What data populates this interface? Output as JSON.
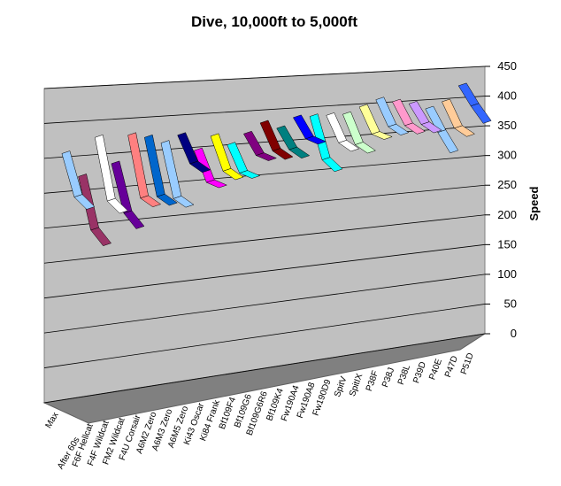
{
  "chart_data": {
    "type": "line3d",
    "title": "Dive, 10,000ft to 5,000ft",
    "y_label": "Speed",
    "categories": [
      "Max",
      null,
      "After 60s"
    ],
    "ylim": [
      0,
      450
    ],
    "yticks": [
      0,
      50,
      100,
      150,
      200,
      250,
      300,
      350,
      400,
      450
    ],
    "grid": true,
    "series": [
      {
        "name": "F6F Hellcat",
        "color": "#99ccff",
        "values": [
          355,
          300,
          290
        ]
      },
      {
        "name": "F4F Wildcat",
        "color": "#993366",
        "values": [
          320,
          250,
          235
        ]
      },
      {
        "name": "FM2 Wildcat",
        "color": "#ffffff",
        "values": [
          375,
          290,
          280
        ]
      },
      {
        "name": "F4U Corsair",
        "color": "#660099",
        "values": [
          335,
          270,
          255
        ]
      },
      {
        "name": "A6M2 Zero",
        "color": "#ff8080",
        "values": [
          375,
          290,
          285
        ]
      },
      {
        "name": "A6M3 Zero",
        "color": "#0066cc",
        "values": [
          370,
          290,
          285
        ]
      },
      {
        "name": "A6M5 Zero",
        "color": "#99ccff",
        "values": [
          360,
          285,
          280
        ]
      },
      {
        "name": "Ki43 Oscar",
        "color": "#000080",
        "values": [
          370,
          335,
          330
        ]
      },
      {
        "name": "Ki84 Frank",
        "color": "#ff00ff",
        "values": [
          345,
          305,
          305
        ]
      },
      {
        "name": "Bf109F4",
        "color": "#ffff00",
        "values": [
          365,
          320,
          315
        ]
      },
      {
        "name": "Bf109G6",
        "color": "#00ffff",
        "values": [
          350,
          315,
          315
        ]
      },
      {
        "name": "Bf109G6R6",
        "color": "#800080",
        "values": [
          365,
          340,
          340
        ]
      },
      {
        "name": "Bf109K4",
        "color": "#800000",
        "values": [
          380,
          345,
          340
        ]
      },
      {
        "name": "Fw190A4",
        "color": "#008080",
        "values": [
          370,
          345,
          340
        ]
      },
      {
        "name": "Fw190A8",
        "color": "#0000ff",
        "values": [
          385,
          360,
          360
        ]
      },
      {
        "name": "Fw190D9",
        "color": "#00ffff",
        "values": [
          385,
          325,
          315
        ]
      },
      {
        "name": "SpitV",
        "color": "#ffffff",
        "values": [
          385,
          350,
          345
        ]
      },
      {
        "name": "SpitIX",
        "color": "#ccffcc",
        "values": [
          385,
          345,
          340
        ]
      },
      {
        "name": "P38F",
        "color": "#ffff99",
        "values": [
          395,
          360,
          360
        ]
      },
      {
        "name": "P38J",
        "color": "#99ccff",
        "values": [
          405,
          370,
          365
        ]
      },
      {
        "name": "P38L",
        "color": "#ff99cc",
        "values": [
          400,
          370,
          365
        ]
      },
      {
        "name": "P39D",
        "color": "#cc99ff",
        "values": [
          395,
          370,
          365
        ]
      },
      {
        "name": "P40E",
        "color": "#99ccff",
        "values": [
          385,
          355,
          330
        ]
      },
      {
        "name": "P47D",
        "color": "#ffcc99",
        "values": [
          395,
          360,
          355
        ]
      },
      {
        "name": "P51D",
        "color": "#3366ff",
        "values": [
          420,
          395,
          375
        ]
      }
    ]
  }
}
